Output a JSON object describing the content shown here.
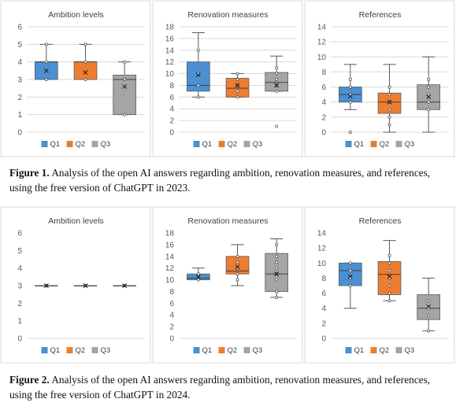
{
  "colors": {
    "Q1": "#4a90d2",
    "Q2": "#ed7d31",
    "Q3": "#a5a5a5"
  },
  "figures": [
    {
      "caption_label": "Figure 1.",
      "caption_text": " Analysis of the open AI answers regarding ambition, renovation measures, and references, using the free version of ChatGPT in 2023."
    },
    {
      "caption_label": "Figure 2.",
      "caption_text": " Analysis of the open AI answers regarding ambition, renovation measures, and references, using the free version of ChatGPT in 2024."
    }
  ],
  "chart_data": [
    {
      "type": "box",
      "title": "Ambition levels",
      "ylim": [
        0,
        6
      ],
      "yticks": [
        0,
        1,
        2,
        3,
        4,
        5,
        6
      ],
      "legend": "bottom",
      "grid": true,
      "series": [
        {
          "name": "Q1",
          "min": 3,
          "q1": 3,
          "median": 4,
          "q3": 4,
          "max": 5,
          "mean": 3.5,
          "points": [
            3,
            4,
            5
          ]
        },
        {
          "name": "Q2",
          "min": 3,
          "q1": 3,
          "median": 4,
          "q3": 4,
          "max": 5,
          "mean": 3.4,
          "points": [
            3,
            4,
            5
          ]
        },
        {
          "name": "Q3",
          "min": 1,
          "q1": 1,
          "median": 3,
          "q3": 3.25,
          "max": 4,
          "mean": 2.6,
          "points": [
            1,
            3,
            4
          ]
        }
      ]
    },
    {
      "type": "box",
      "title": "Renovation measures",
      "ylim": [
        0,
        18
      ],
      "yticks": [
        0,
        2,
        4,
        6,
        8,
        10,
        12,
        14,
        16,
        18
      ],
      "legend": "bottom",
      "grid": true,
      "series": [
        {
          "name": "Q1",
          "min": 6,
          "q1": 7,
          "median": 8,
          "q3": 12,
          "max": 17,
          "mean": 9.8,
          "points": [
            6,
            8,
            10,
            14
          ]
        },
        {
          "name": "Q2",
          "min": 6,
          "q1": 6,
          "median": 7.5,
          "q3": 9.2,
          "max": 10,
          "mean": 8,
          "points": [
            6,
            7,
            8,
            9,
            10
          ]
        },
        {
          "name": "Q3",
          "min": 7,
          "q1": 7,
          "median": 8.5,
          "q3": 10.2,
          "max": 13,
          "mean": 8,
          "points": [
            1,
            7,
            8,
            9,
            10,
            11
          ]
        }
      ]
    },
    {
      "type": "box",
      "title": "References",
      "ylim": [
        0,
        14
      ],
      "yticks": [
        0,
        2,
        4,
        6,
        8,
        10,
        12,
        14
      ],
      "legend": "bottom",
      "grid": true,
      "series": [
        {
          "name": "Q1",
          "min": 3,
          "q1": 4,
          "median": 5,
          "q3": 6,
          "max": 9,
          "mean": 4.8,
          "points": [
            0,
            4,
            5,
            6,
            7
          ]
        },
        {
          "name": "Q2",
          "min": 0,
          "q1": 2.5,
          "median": 4,
          "q3": 5.2,
          "max": 9,
          "mean": 4,
          "points": [
            1,
            2,
            3,
            4,
            5,
            6
          ]
        },
        {
          "name": "Q3",
          "min": 0,
          "q1": 3,
          "median": 4,
          "q3": 6.3,
          "max": 10,
          "mean": 4.7,
          "points": [
            3,
            4,
            5,
            6,
            7
          ]
        }
      ]
    },
    {
      "type": "box",
      "title": "Ambition levels",
      "ylim": [
        0,
        6
      ],
      "yticks": [
        0,
        1,
        2,
        3,
        4,
        5,
        6
      ],
      "legend": "bottom",
      "grid": false,
      "series": [
        {
          "name": "Q1",
          "min": 3,
          "q1": 3,
          "median": 3,
          "q3": 3,
          "max": 3,
          "mean": 3,
          "points": [
            3
          ]
        },
        {
          "name": "Q2",
          "min": 3,
          "q1": 3,
          "median": 3,
          "q3": 3,
          "max": 3,
          "mean": 3,
          "points": [
            3
          ]
        },
        {
          "name": "Q3",
          "min": 3,
          "q1": 3,
          "median": 3,
          "q3": 3,
          "max": 3,
          "mean": 3,
          "points": [
            3
          ]
        }
      ]
    },
    {
      "type": "box",
      "title": "Renovation measures",
      "ylim": [
        0,
        18
      ],
      "yticks": [
        0,
        2,
        4,
        6,
        8,
        10,
        12,
        14,
        16,
        18
      ],
      "legend": "bottom",
      "grid": false,
      "series": [
        {
          "name": "Q1",
          "min": 10,
          "q1": 10,
          "median": 10.3,
          "q3": 11,
          "max": 12,
          "mean": 10.5,
          "points": [
            10,
            11
          ]
        },
        {
          "name": "Q2",
          "min": 9,
          "q1": 11,
          "median": 11.5,
          "q3": 14,
          "max": 16,
          "mean": 12.2,
          "points": [
            10,
            11,
            12,
            13,
            14
          ]
        },
        {
          "name": "Q3",
          "min": 7,
          "q1": 8,
          "median": 11,
          "q3": 14.5,
          "max": 17,
          "mean": 11,
          "points": [
            7,
            8,
            10,
            11,
            12,
            13,
            14,
            16
          ]
        }
      ]
    },
    {
      "type": "box",
      "title": "References",
      "ylim": [
        0,
        14
      ],
      "yticks": [
        0,
        2,
        4,
        6,
        8,
        10,
        12,
        14
      ],
      "legend": "bottom",
      "grid": false,
      "series": [
        {
          "name": "Q1",
          "min": 4,
          "q1": 7,
          "median": 9,
          "q3": 10,
          "max": 10,
          "mean": 8.2,
          "points": [
            7,
            8,
            9,
            10
          ]
        },
        {
          "name": "Q2",
          "min": 5,
          "q1": 5.8,
          "median": 8.5,
          "q3": 10.2,
          "max": 13,
          "mean": 8.2,
          "points": [
            5,
            6,
            7,
            8,
            9,
            10,
            11
          ]
        },
        {
          "name": "Q3",
          "min": 1,
          "q1": 2.5,
          "median": 4,
          "q3": 5.8,
          "max": 8,
          "mean": 4.2,
          "points": [
            1,
            3,
            4,
            5
          ]
        }
      ]
    }
  ]
}
